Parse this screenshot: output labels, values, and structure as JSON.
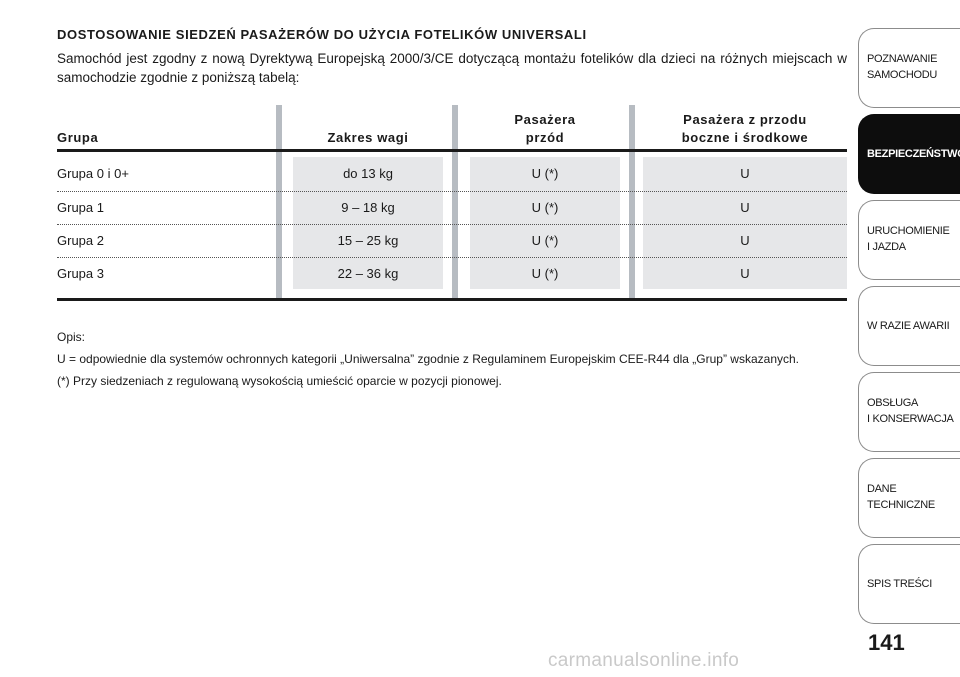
{
  "title": "DOSTOSOWANIE SIEDZEŃ PASAŻERÓW DO UŻYCIA FOTELIKÓW UNIVERSALI",
  "intro": "Samochód jest zgodny z nową Dyrektywą Europejską 2000/3/CE dotyczącą montażu fotelików dla dzieci na różnych miejscach w samochodzie zgodnie z poniższą tabelą:",
  "table": {
    "headers": {
      "group": "Grupa",
      "weight": "Zakres wagi",
      "front_line1": "Pasażera",
      "front_line2": "przód",
      "rear_line1": "Pasażera z przodu",
      "rear_line2": "boczne i środkowe"
    },
    "rows": [
      {
        "group": "Grupa 0 i 0+",
        "weight": "do 13 kg",
        "front": "U (*)",
        "rear": "U"
      },
      {
        "group": "Grupa 1",
        "weight": "9 – 18 kg",
        "front": "U (*)",
        "rear": "U"
      },
      {
        "group": "Grupa 2",
        "weight": "15 – 25 kg",
        "front": "U (*)",
        "rear": "U"
      },
      {
        "group": "Grupa 3",
        "weight": "22 – 36 kg",
        "front": "U (*)",
        "rear": "U"
      }
    ]
  },
  "notes": {
    "heading": "Opis:",
    "line1": "U = odpowiednie dla systemów ochronnych kategorii „Uniwersalna” zgodnie z Regulaminem Europejskim CEE-R44 dla „Grup” wskazanych.",
    "line2": "(*) Przy siedzeniach z regulowaną wysokością umieścić oparcie w pozycji pionowej."
  },
  "sidebar": {
    "tabs": [
      {
        "line1": "POZNAWANIE",
        "line2": "SAMOCHODU",
        "active": false
      },
      {
        "line1": "BEZPIECZEŃSTWO",
        "line2": "",
        "active": true
      },
      {
        "line1": "URUCHOMIENIE",
        "line2": "I JAZDA",
        "active": false
      },
      {
        "line1": "W RAZIE AWARII",
        "line2": "",
        "active": false
      },
      {
        "line1": "OBSŁUGA",
        "line2": "I KONSERWACJA",
        "active": false
      },
      {
        "line1": "DANE",
        "line2": "TECHNICZNE",
        "active": false
      },
      {
        "line1": "SPIS TREŚCI",
        "line2": "",
        "active": false
      }
    ]
  },
  "page_number": "141",
  "watermark": "carmanualsonline.info",
  "colors": {
    "text": "#1a1a1a",
    "active_tab": "#0d0d0d",
    "separator": "#b7bcc2",
    "shade": "#e6e7e9"
  }
}
